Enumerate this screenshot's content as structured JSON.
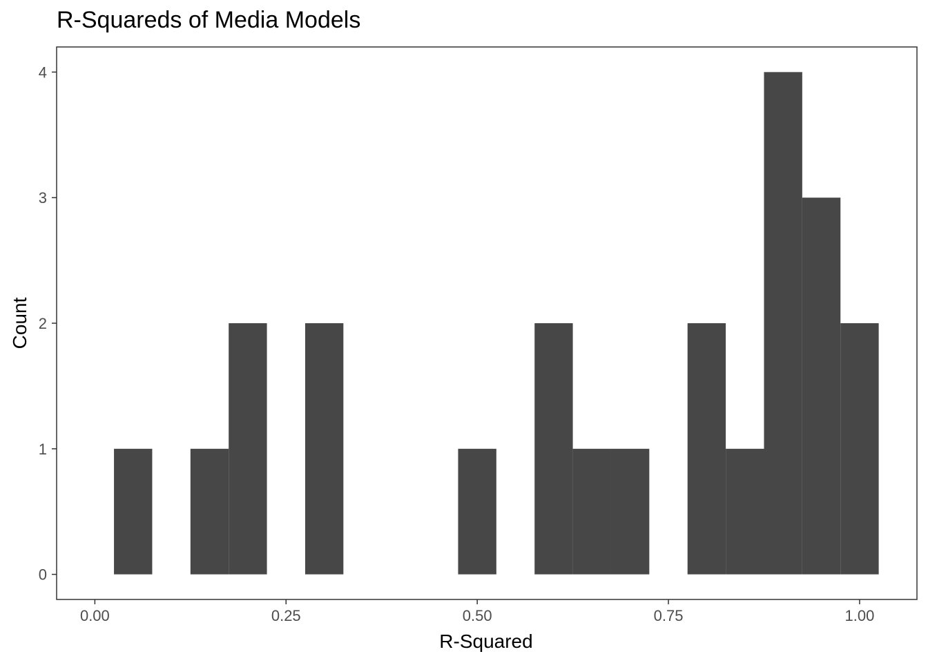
{
  "chart_data": {
    "type": "bar",
    "title": "R-Squareds of Media Models",
    "xlabel": "R-Squared",
    "ylabel": "Count",
    "xlim": [
      -0.05,
      1.075
    ],
    "ylim": [
      -0.2,
      4.2
    ],
    "x_ticks": [
      0,
      0.25,
      0.5,
      0.75,
      1
    ],
    "x_tick_labels": [
      "0.00",
      "0.25",
      "0.50",
      "0.75",
      "1.00"
    ],
    "y_ticks": [
      0,
      1,
      2,
      3,
      4
    ],
    "y_tick_labels": [
      "0",
      "1",
      "2",
      "3",
      "4"
    ],
    "bin_width": 0.05,
    "bins": [
      {
        "x": 0.05,
        "count": 1
      },
      {
        "x": 0.15,
        "count": 1
      },
      {
        "x": 0.2,
        "count": 2
      },
      {
        "x": 0.3,
        "count": 2
      },
      {
        "x": 0.5,
        "count": 1
      },
      {
        "x": 0.6,
        "count": 2
      },
      {
        "x": 0.65,
        "count": 1
      },
      {
        "x": 0.7,
        "count": 1
      },
      {
        "x": 0.8,
        "count": 2
      },
      {
        "x": 0.85,
        "count": 1
      },
      {
        "x": 0.9,
        "count": 4
      },
      {
        "x": 0.95,
        "count": 3
      },
      {
        "x": 1.0,
        "count": 2
      }
    ],
    "bar_color": "#474747",
    "grid": false
  }
}
